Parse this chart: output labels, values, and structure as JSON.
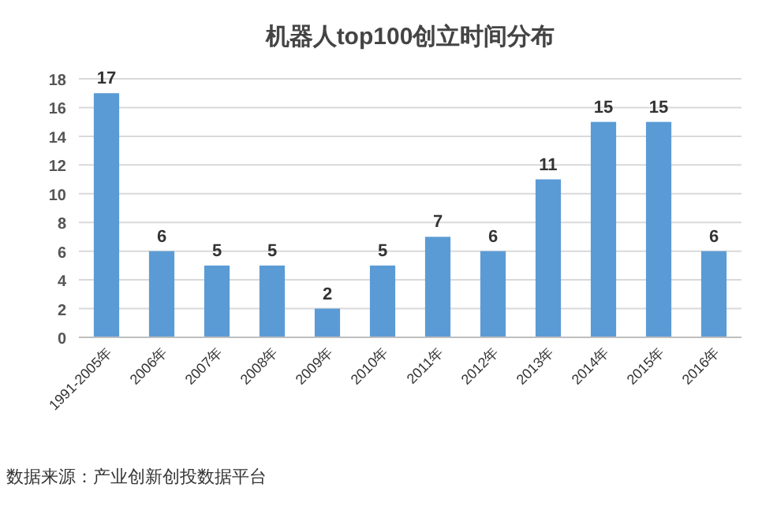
{
  "chart_data": {
    "type": "bar",
    "title": "机器人top100创立时间分布",
    "categories": [
      "1991-2005年",
      "2006年",
      "2007年",
      "2008年",
      "2009年",
      "2010年",
      "2011年",
      "2012年",
      "2013年",
      "2014年",
      "2015年",
      "2016年"
    ],
    "values": [
      17,
      6,
      5,
      5,
      2,
      5,
      7,
      6,
      11,
      15,
      15,
      6
    ],
    "color": "#5b9bd5",
    "ylim": [
      0,
      18
    ],
    "yticks": [
      0,
      2,
      4,
      6,
      8,
      10,
      12,
      14,
      16,
      18
    ],
    "grid": "y",
    "data_labels": true,
    "annotations": [
      "数据来源：产业创新创投数据平台"
    ]
  }
}
